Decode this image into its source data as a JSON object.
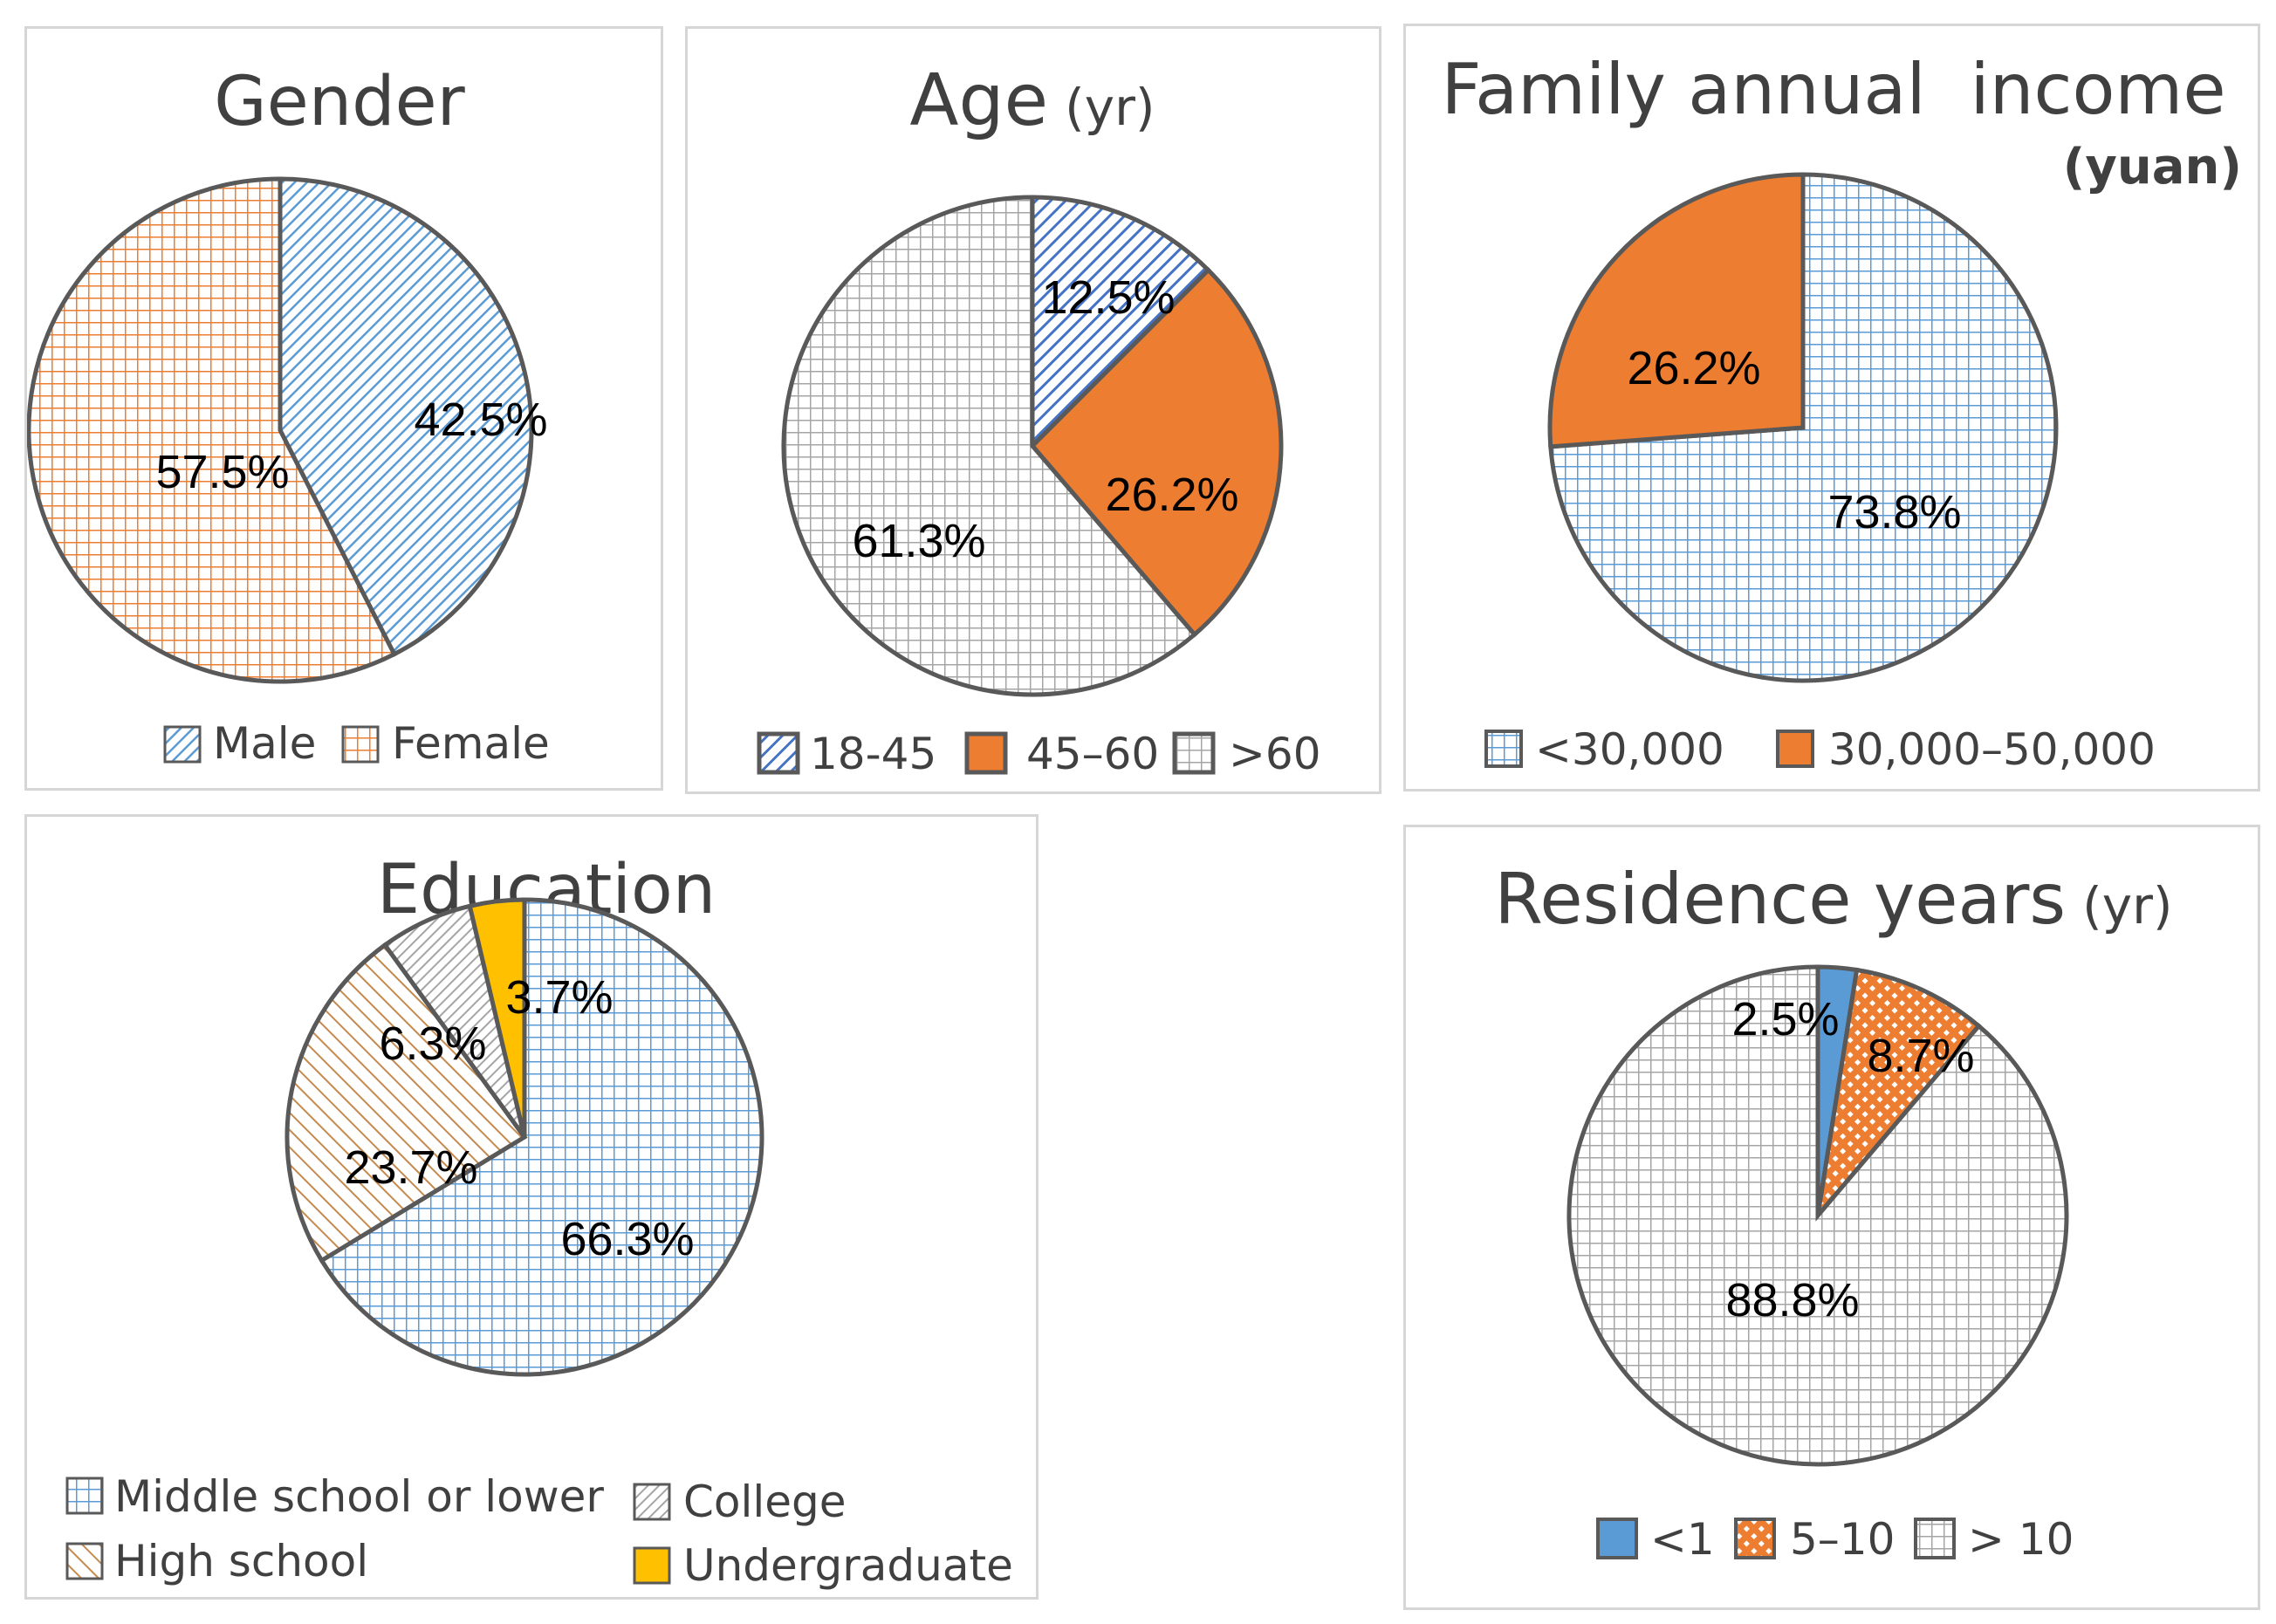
{
  "colors": {
    "blue": "#4472c4",
    "lightblue": "#5b9bd5",
    "orange": "#ed7d31",
    "gray": "#a5a5a5",
    "yellow": "#ffc000",
    "outline": "#595959"
  },
  "chart_data": [
    {
      "type": "pie",
      "id": "gender",
      "title": "Gender",
      "title_unit": "",
      "categories": [
        "Male",
        "Female"
      ],
      "values": [
        42.5,
        57.5
      ],
      "labels": [
        "42.5%",
        "57.5%"
      ],
      "legend": [
        "Male",
        "Female"
      ],
      "legend_position": "bottom"
    },
    {
      "type": "pie",
      "id": "age",
      "title": "Age",
      "title_unit": "(yr)",
      "categories": [
        "18-45",
        "45–60",
        ">60"
      ],
      "values": [
        12.5,
        26.2,
        61.3
      ],
      "labels": [
        "12.5%",
        "26.2%",
        "61.3%"
      ],
      "legend": [
        "18-45",
        "45–60",
        ">60"
      ],
      "legend_position": "bottom"
    },
    {
      "type": "pie",
      "id": "income",
      "title": "Family annual  income",
      "title_unit": "(yuan)",
      "categories": [
        "<30,000",
        "30,000–50,000"
      ],
      "values": [
        73.8,
        26.2
      ],
      "labels": [
        "73.8%",
        "26.2%"
      ],
      "legend": [
        "<30,000",
        "30,000–50,000"
      ],
      "legend_position": "bottom"
    },
    {
      "type": "pie",
      "id": "education",
      "title": "Education",
      "title_unit": "",
      "categories": [
        "Middle school or lower",
        "High school",
        "College",
        "Undergraduate"
      ],
      "values": [
        66.3,
        23.7,
        6.3,
        3.7
      ],
      "labels": [
        "66.3%",
        "23.7%",
        "6.3%",
        "3.7%"
      ],
      "legend": [
        "Middle school or lower",
        "College",
        "High school",
        "Undergraduate"
      ],
      "legend_position": "bottom"
    },
    {
      "type": "pie",
      "id": "residence",
      "title": "Residence years",
      "title_unit": "(yr)",
      "categories": [
        "<1",
        "5–10",
        "> 10"
      ],
      "values": [
        2.5,
        8.7,
        88.8
      ],
      "labels": [
        "2.5%",
        "8.7%",
        "88.8%"
      ],
      "legend": [
        "<1",
        "5–10",
        "> 10"
      ],
      "legend_position": "bottom"
    }
  ]
}
